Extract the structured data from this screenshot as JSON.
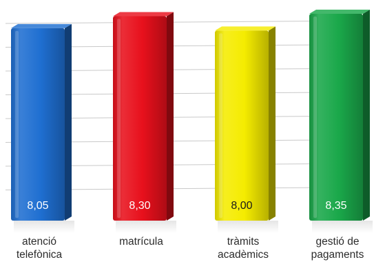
{
  "chart_data": {
    "type": "bar",
    "categories": [
      "atenció\ntelefònica",
      "matrícula",
      "tràmits\nacadèmics",
      "gestió de\npagaments"
    ],
    "values": [
      8.05,
      8.3,
      8.0,
      8.35
    ],
    "value_labels": [
      "8,05",
      "8,30",
      "8,00",
      "8,35"
    ],
    "colors": [
      "#1f6fd1",
      "#e8101c",
      "#f5ec00",
      "#1aa84a"
    ],
    "value_label_colors": [
      "#ffffff",
      "#ffffff",
      "#1a1a1a",
      "#ffffff"
    ],
    "grid": true,
    "legend": "none"
  }
}
